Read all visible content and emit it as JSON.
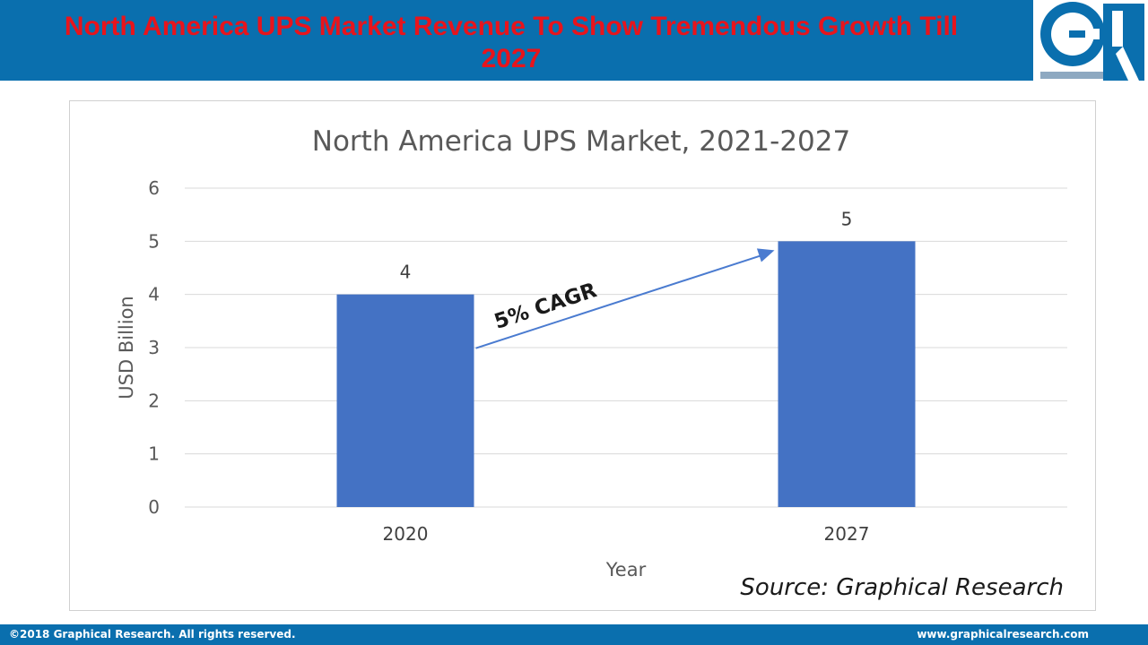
{
  "header": {
    "headline": "North America UPS Market Revenue To Show Tremendous Growth Till 2027"
  },
  "footer": {
    "copyright": "©2018 Graphical Research. All rights reserved.",
    "website": "www.graphicalresearch.com"
  },
  "source_note": "Source: Graphical Research",
  "colors": {
    "header_bg": "#0a6fae",
    "headline": "#e8141c",
    "bar": "#4472c4",
    "arrow": "#4a7bd0",
    "grid": "#d9d9d9"
  },
  "chart_data": {
    "type": "bar",
    "title": "North America UPS Market, 2021-2027",
    "xlabel": "Year",
    "ylabel": "USD Billion",
    "categories": [
      "2020",
      "2027"
    ],
    "values": [
      4,
      5
    ],
    "data_labels": [
      "4",
      "5"
    ],
    "ylim": [
      0,
      6
    ],
    "yticks": [
      0,
      1,
      2,
      3,
      4,
      5,
      6
    ],
    "grid": true,
    "annotation": {
      "text": "5% CAGR",
      "type": "arrow",
      "from_category": "2020",
      "to_category": "2027"
    }
  }
}
